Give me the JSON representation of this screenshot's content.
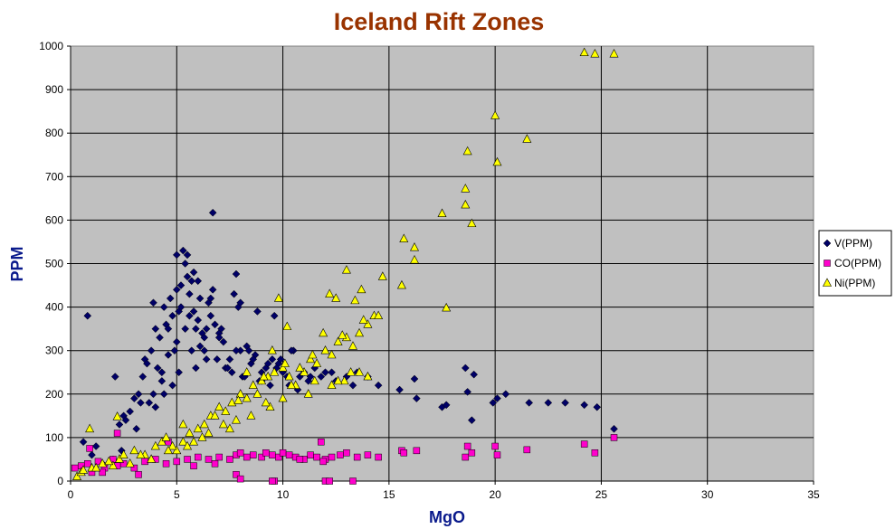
{
  "chart_data": {
    "type": "scatter",
    "title": "Iceland Rift Zones",
    "xlabel": "MgO",
    "ylabel": "PPM",
    "xlim": [
      0,
      35
    ],
    "ylim": [
      0,
      1000
    ],
    "x_ticks": [
      0,
      5,
      10,
      15,
      20,
      25,
      30,
      35
    ],
    "y_ticks": [
      0,
      100,
      200,
      300,
      400,
      500,
      600,
      700,
      800,
      900,
      1000
    ],
    "grid": true,
    "legend_position": "right",
    "plot_background": "#c0c0c0",
    "series": [
      {
        "name": "V(PPM)",
        "marker": "diamond",
        "color": "#000066",
        "x": [
          0.8,
          0.6,
          1.2,
          2.1,
          2.3,
          2.5,
          2.8,
          3.0,
          3.2,
          3.4,
          3.5,
          3.6,
          3.8,
          3.9,
          4.0,
          4.1,
          4.2,
          4.3,
          4.4,
          4.5,
          4.6,
          4.7,
          4.8,
          4.9,
          5.0,
          5.0,
          5.1,
          5.2,
          5.3,
          5.4,
          5.5,
          5.6,
          5.7,
          5.8,
          5.9,
          6.0,
          6.1,
          6.2,
          6.3,
          6.4,
          6.5,
          6.6,
          6.8,
          7.0,
          7.2,
          6.7,
          7.5,
          7.8,
          8.0,
          8.3,
          8.5,
          8.7,
          9.0,
          9.2,
          9.5,
          9.8,
          10.0,
          10.2,
          10.5,
          10.8,
          11.0,
          11.2,
          11.5,
          11.8,
          12.0,
          12.5,
          13.0,
          13.5,
          14.0,
          14.5,
          15.5,
          16.2,
          16.3,
          17.5,
          17.7,
          18.6,
          18.7,
          18.9,
          19.0,
          19.9,
          20.1,
          20.5,
          21.6,
          22.5,
          23.3,
          24.2,
          24.8,
          25.6,
          4.3,
          5.0,
          5.6,
          6.4,
          7.0,
          7.8,
          8.6,
          9.3,
          4.6,
          5.4,
          6.1,
          7.3,
          8.1,
          9.0,
          9.7,
          3.3,
          3.9,
          4.8,
          5.9,
          6.9,
          7.6,
          8.9,
          10.3,
          5.2,
          6.6,
          8.4,
          9.9,
          11.3,
          12.3,
          13.3,
          2.6,
          3.7,
          4.4,
          5.1,
          5.7,
          6.3,
          7.4,
          8.2,
          9.4,
          10.7,
          1.0,
          1.5,
          2.0,
          2.4,
          3.1,
          7.1,
          7.9,
          8.8,
          9.6,
          10.4,
          4.0,
          5.8,
          6.0,
          7.7,
          8.0,
          5.5,
          6.7
        ],
        "y": [
          380,
          90,
          80,
          240,
          130,
          150,
          160,
          190,
          200,
          240,
          280,
          270,
          300,
          410,
          350,
          260,
          330,
          230,
          400,
          360,
          350,
          420,
          380,
          300,
          520,
          440,
          390,
          450,
          530,
          500,
          520,
          430,
          460,
          390,
          350,
          370,
          420,
          340,
          300,
          280,
          410,
          380,
          360,
          340,
          320,
          617,
          280,
          476,
          300,
          310,
          270,
          290,
          250,
          260,
          280,
          270,
          250,
          240,
          300,
          240,
          250,
          230,
          260,
          240,
          250,
          230,
          240,
          250,
          240,
          220,
          210,
          235,
          190,
          170,
          175,
          260,
          205,
          140,
          245,
          180,
          190,
          200,
          180,
          180,
          180,
          175,
          170,
          120,
          250,
          320,
          380,
          350,
          330,
          300,
          280,
          270,
          290,
          350,
          310,
          260,
          240,
          230,
          260,
          180,
          200,
          220,
          260,
          280,
          250,
          230,
          220,
          400,
          420,
          300,
          280,
          240,
          250,
          220,
          140,
          180,
          200,
          250,
          300,
          330,
          260,
          240,
          220,
          210,
          60,
          40,
          50,
          70,
          120,
          350,
          400,
          390,
          380,
          300,
          170,
          480,
          460,
          430,
          410,
          470,
          440
        ]
      },
      {
        "name": "CO(PPM)",
        "marker": "square",
        "color": "#ff00cc",
        "x": [
          0.2,
          0.5,
          0.8,
          1.0,
          1.3,
          1.6,
          2.0,
          2.2,
          2.5,
          3.0,
          3.5,
          4.0,
          4.5,
          5.0,
          5.5,
          6.0,
          6.5,
          7.0,
          7.5,
          7.8,
          8.0,
          8.3,
          8.6,
          9.0,
          9.2,
          9.5,
          9.8,
          10.0,
          10.3,
          10.6,
          11.0,
          11.3,
          11.6,
          12.0,
          12.3,
          12.7,
          13.0,
          13.5,
          14.0,
          14.5,
          15.6,
          15.7,
          16.3,
          18.6,
          18.7,
          18.9,
          20.0,
          20.1,
          21.5,
          24.2,
          24.7,
          25.6,
          2.2,
          0.9,
          4.6,
          11.8,
          7.8,
          8.0,
          9.6,
          13.3,
          9.5,
          12.0,
          12.2,
          1.5,
          3.2,
          5.8,
          6.8,
          10.8,
          11.9
        ],
        "y": [
          30,
          35,
          40,
          20,
          45,
          30,
          50,
          35,
          40,
          30,
          45,
          50,
          40,
          45,
          50,
          55,
          50,
          55,
          50,
          60,
          65,
          55,
          60,
          55,
          65,
          60,
          55,
          65,
          60,
          55,
          50,
          60,
          55,
          50,
          55,
          60,
          65,
          55,
          60,
          55,
          70,
          65,
          70,
          55,
          80,
          65,
          80,
          60,
          72,
          85,
          65,
          100,
          110,
          75,
          90,
          90,
          15,
          5,
          0,
          0,
          0,
          0,
          0,
          20,
          15,
          35,
          40,
          50,
          45
        ]
      },
      {
        "name": "Ni(PPM)",
        "marker": "triangle",
        "color": "#ffff00",
        "x": [
          0.9,
          0.3,
          0.5,
          1.0,
          1.5,
          2.0,
          2.3,
          2.5,
          3.0,
          3.5,
          4.0,
          4.3,
          4.5,
          5.0,
          5.3,
          5.6,
          6.0,
          6.3,
          6.6,
          7.0,
          7.3,
          7.6,
          8.0,
          8.3,
          8.6,
          9.0,
          9.3,
          9.6,
          10.0,
          10.3,
          10.6,
          11.0,
          11.3,
          11.6,
          12.0,
          12.3,
          12.6,
          13.0,
          13.3,
          13.6,
          14.0,
          14.3,
          14.7,
          9.8,
          10.2,
          11.4,
          11.9,
          12.2,
          12.5,
          12.8,
          13.0,
          13.4,
          13.7,
          14.5,
          15.6,
          15.7,
          16.2,
          16.2,
          17.5,
          17.7,
          18.6,
          18.6,
          18.7,
          18.9,
          20.0,
          20.1,
          21.5,
          24.2,
          24.7,
          25.6,
          2.2,
          5.3,
          6.8,
          7.9,
          8.3,
          9.1,
          9.5,
          10.1,
          10.8,
          11.5,
          12.3,
          12.9,
          13.2,
          1.2,
          2.8,
          3.8,
          4.8,
          5.8,
          6.5,
          7.2,
          7.8,
          8.8,
          9.4,
          10.4,
          11.2,
          12.6,
          13.6,
          14.0,
          0.6,
          1.8,
          3.3,
          4.6,
          5.5,
          6.2,
          7.5,
          8.5,
          9.2,
          10.0,
          13.8
        ],
        "y": [
          120,
          10,
          20,
          30,
          40,
          35,
          50,
          60,
          70,
          60,
          80,
          90,
          100,
          70,
          90,
          110,
          120,
          130,
          150,
          170,
          160,
          180,
          200,
          190,
          220,
          230,
          240,
          250,
          260,
          240,
          220,
          250,
          280,
          270,
          300,
          290,
          320,
          330,
          310,
          340,
          360,
          380,
          470,
          420,
          355,
          290,
          340,
          430,
          420,
          335,
          485,
          415,
          440,
          380,
          450,
          557,
          537,
          508,
          615,
          398,
          635,
          672,
          758,
          592,
          840,
          733,
          786,
          985,
          982,
          982,
          148,
          130,
          150,
          185,
          250,
          240,
          300,
          270,
          260,
          230,
          220,
          230,
          250,
          30,
          40,
          50,
          80,
          90,
          110,
          130,
          140,
          200,
          170,
          220,
          200,
          230,
          250,
          240,
          25,
          45,
          60,
          70,
          80,
          100,
          120,
          150,
          180,
          190,
          370
        ]
      }
    ]
  }
}
